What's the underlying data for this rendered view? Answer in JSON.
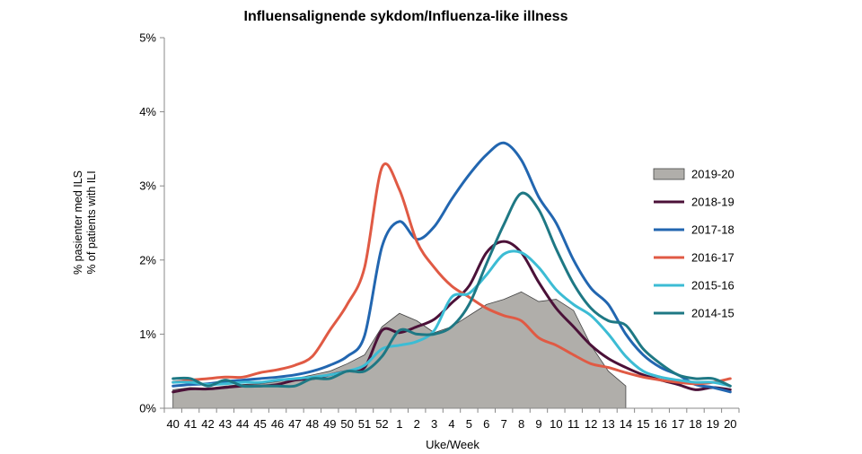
{
  "chart_data": {
    "type": "line",
    "title": "Influensalignende sykdom/Influenza-like illness",
    "xlabel": "Uke/Week",
    "ylabel_line1": "% pasienter med ILS",
    "ylabel_line2": "% of patients with ILI",
    "ylim": [
      0,
      5
    ],
    "yticks": [
      "0%",
      "1%",
      "2%",
      "3%",
      "4%",
      "5%"
    ],
    "categories": [
      "40",
      "41",
      "42",
      "43",
      "44",
      "45",
      "46",
      "47",
      "48",
      "49",
      "50",
      "51",
      "52",
      "1",
      "2",
      "3",
      "4",
      "5",
      "6",
      "7",
      "8",
      "9",
      "10",
      "11",
      "12",
      "13",
      "14",
      "15",
      "16",
      "17",
      "18",
      "19",
      "20"
    ],
    "grid": false,
    "legend_position": "right",
    "series": [
      {
        "name": "2019-20",
        "type": "area",
        "color": "#b0aeaa",
        "edge": "#444444",
        "values": [
          0.25,
          0.28,
          0.27,
          0.3,
          0.32,
          0.33,
          0.36,
          0.4,
          0.45,
          0.5,
          0.6,
          0.72,
          1.1,
          1.28,
          1.18,
          1.02,
          1.1,
          1.25,
          1.4,
          1.47,
          1.57,
          1.44,
          1.47,
          1.32,
          0.85,
          0.5,
          0.3,
          null,
          null,
          null,
          null,
          null,
          null
        ]
      },
      {
        "name": "2018-19",
        "color": "#4b1138",
        "values": [
          0.22,
          0.26,
          0.26,
          0.28,
          0.3,
          0.3,
          0.32,
          0.38,
          0.4,
          0.45,
          0.5,
          0.55,
          1.05,
          1.02,
          1.1,
          1.2,
          1.42,
          1.65,
          2.1,
          2.25,
          2.1,
          1.7,
          1.35,
          1.1,
          0.85,
          0.67,
          0.55,
          0.45,
          0.38,
          0.32,
          0.25,
          0.28,
          0.25
        ]
      },
      {
        "name": "2017-18",
        "color": "#2266b0",
        "values": [
          0.3,
          0.32,
          0.33,
          0.36,
          0.38,
          0.4,
          0.42,
          0.45,
          0.5,
          0.58,
          0.7,
          0.98,
          2.18,
          2.52,
          2.28,
          2.45,
          2.82,
          3.15,
          3.42,
          3.58,
          3.35,
          2.85,
          2.5,
          2.0,
          1.62,
          1.4,
          1.0,
          0.72,
          0.55,
          0.45,
          0.32,
          0.28,
          0.22
        ]
      },
      {
        "name": "2016-17",
        "color": "#e05a44",
        "values": [
          0.35,
          0.38,
          0.4,
          0.42,
          0.42,
          0.48,
          0.52,
          0.58,
          0.7,
          1.05,
          1.4,
          1.9,
          3.25,
          2.95,
          2.25,
          1.9,
          1.65,
          1.5,
          1.35,
          1.25,
          1.18,
          0.95,
          0.85,
          0.72,
          0.6,
          0.55,
          0.48,
          0.42,
          0.38,
          0.35,
          0.33,
          0.35,
          0.4
        ]
      },
      {
        "name": "2015-16",
        "color": "#3cbcd4",
        "values": [
          0.35,
          0.35,
          0.32,
          0.33,
          0.35,
          0.35,
          0.38,
          0.4,
          0.42,
          0.45,
          0.5,
          0.58,
          0.8,
          0.85,
          0.9,
          1.05,
          1.5,
          1.55,
          1.8,
          2.08,
          2.1,
          1.9,
          1.6,
          1.4,
          1.25,
          1.0,
          0.7,
          0.5,
          0.42,
          0.38,
          0.35,
          0.35,
          0.3
        ]
      },
      {
        "name": "2014-15",
        "color": "#1e7884",
        "values": [
          0.4,
          0.4,
          0.3,
          0.38,
          0.3,
          0.3,
          0.3,
          0.3,
          0.4,
          0.4,
          0.5,
          0.5,
          0.7,
          1.05,
          1.0,
          1.0,
          1.1,
          1.4,
          1.95,
          2.48,
          2.9,
          2.68,
          2.15,
          1.68,
          1.35,
          1.18,
          1.12,
          0.8,
          0.6,
          0.45,
          0.4,
          0.4,
          0.3
        ]
      }
    ]
  }
}
